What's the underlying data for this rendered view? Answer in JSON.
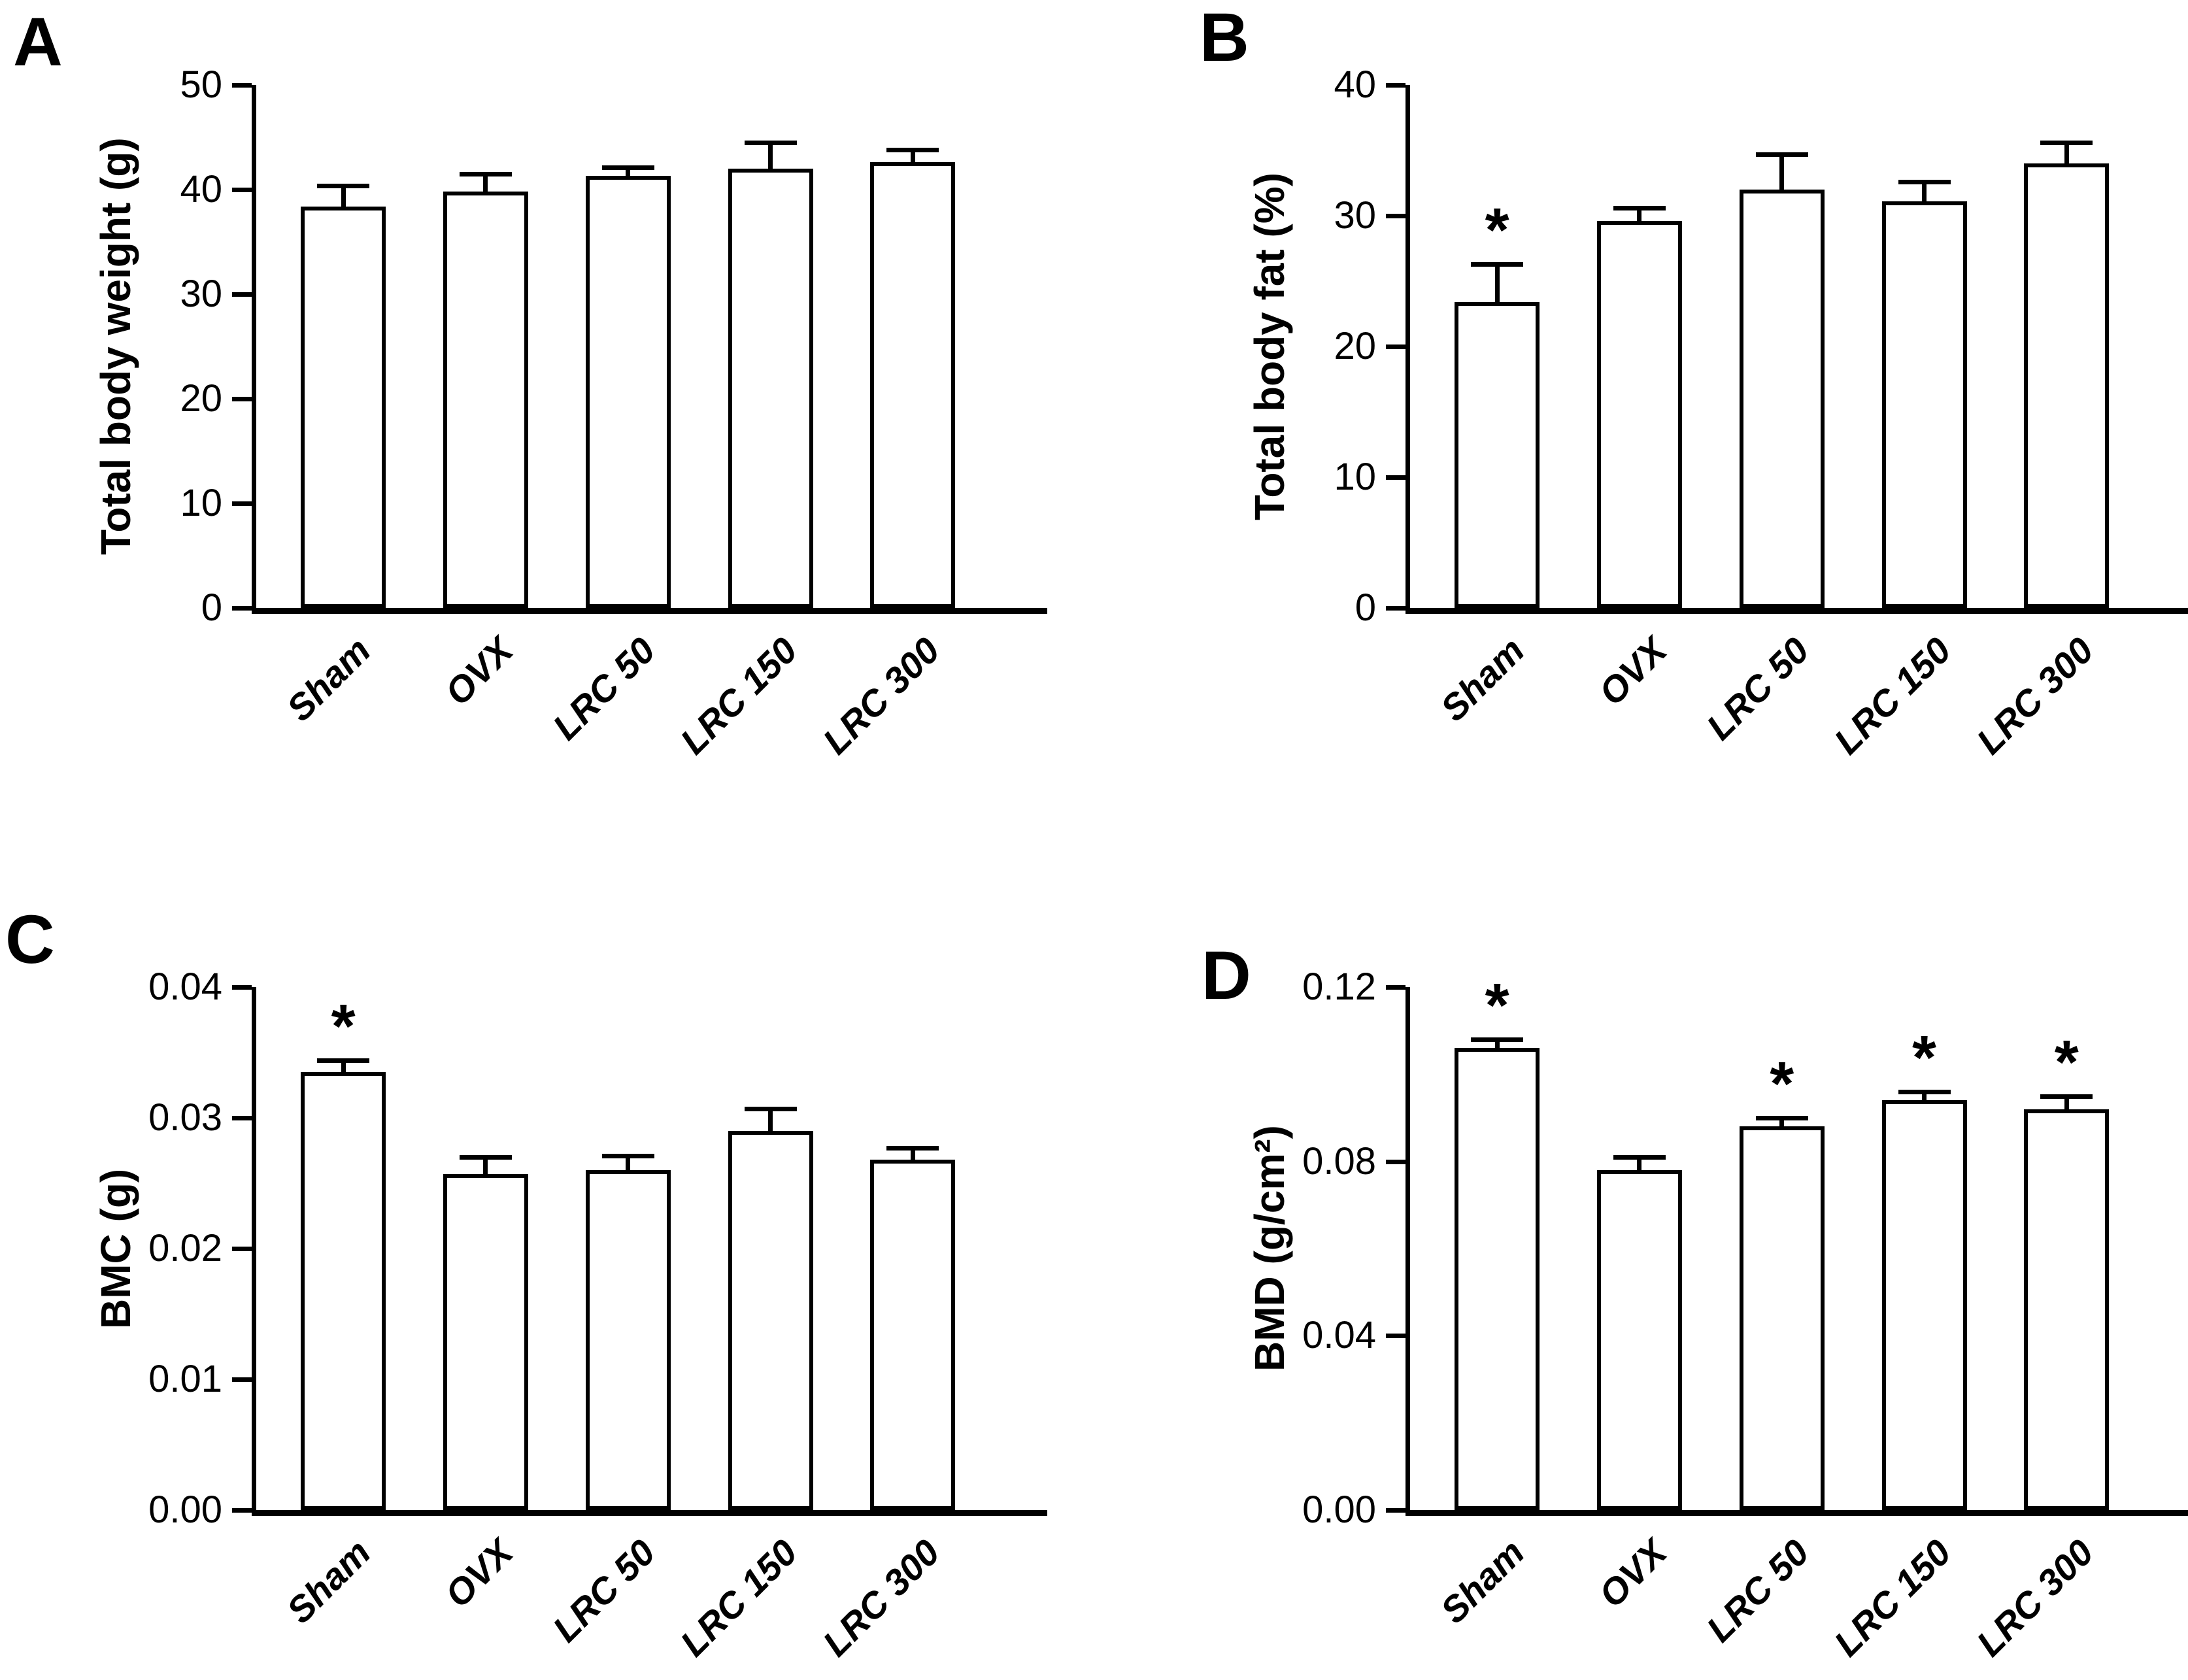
{
  "figure": {
    "background": "#ffffff",
    "bar_fill": "#ffffff",
    "bar_border": "#000000",
    "axis_color": "#000000",
    "significance_marker": "*",
    "panel_letters": [
      "A",
      "B",
      "C",
      "D"
    ]
  },
  "chart_data": [
    {
      "type": "bar",
      "panel_letter": "A",
      "title": "",
      "xlabel": "",
      "ylabel": "Total body weight (g)",
      "categories": [
        "Sham",
        "OVX",
        "LRC 50",
        "LRC 150",
        "LRC 300"
      ],
      "values": [
        38.4,
        39.8,
        41.3,
        42.0,
        42.6
      ],
      "sem": [
        2.0,
        1.7,
        0.8,
        2.5,
        1.2
      ],
      "significant": [
        false,
        false,
        false,
        false,
        false
      ],
      "ylim": [
        0,
        50
      ],
      "yticks": [
        0,
        10,
        20,
        30,
        40,
        50
      ],
      "ytick_labels": [
        "0",
        "10",
        "20",
        "30",
        "40",
        "50"
      ],
      "grid": false,
      "legend": null,
      "error_bar_style": "upper T-cap",
      "x_label_rotation_deg": 45
    },
    {
      "type": "bar",
      "panel_letter": "B",
      "title": "",
      "xlabel": "",
      "ylabel": "Total body fat (%)",
      "categories": [
        "Sham",
        "OVX",
        "LRC 50",
        "LRC 150",
        "LRC 300"
      ],
      "values": [
        23.4,
        29.6,
        32.0,
        31.1,
        34.0
      ],
      "sem": [
        2.9,
        1.0,
        2.7,
        1.5,
        1.6
      ],
      "significant": [
        true,
        false,
        false,
        false,
        false
      ],
      "ylim": [
        0,
        40
      ],
      "yticks": [
        0,
        10,
        20,
        30,
        40
      ],
      "ytick_labels": [
        "0",
        "10",
        "20",
        "30",
        "40"
      ],
      "grid": false,
      "legend": null,
      "error_bar_style": "upper T-cap",
      "x_label_rotation_deg": 45
    },
    {
      "type": "bar",
      "panel_letter": "C",
      "title": "",
      "xlabel": "",
      "ylabel": "BMC (g)",
      "categories": [
        "Sham",
        "OVX",
        "LRC 50",
        "LRC 150",
        "LRC 300"
      ],
      "values": [
        0.0335,
        0.0257,
        0.026,
        0.029,
        0.0268
      ],
      "sem": [
        0.0009,
        0.0013,
        0.0011,
        0.0017,
        0.0009
      ],
      "significant": [
        true,
        false,
        false,
        false,
        false
      ],
      "ylim": [
        0,
        0.04
      ],
      "yticks": [
        0,
        0.01,
        0.02,
        0.03,
        0.04
      ],
      "ytick_labels": [
        "0.00",
        "0.01",
        "0.02",
        "0.03",
        "0.04"
      ],
      "grid": false,
      "legend": null,
      "error_bar_style": "upper T-cap",
      "x_label_rotation_deg": 45
    },
    {
      "type": "bar",
      "panel_letter": "D",
      "title": "",
      "xlabel": "",
      "ylabel": "BMD (g/cm²)",
      "categories": [
        "Sham",
        "OVX",
        "LRC 50",
        "LRC 150",
        "LRC 300"
      ],
      "values": [
        0.106,
        0.078,
        0.088,
        0.094,
        0.092
      ],
      "sem": [
        0.002,
        0.003,
        0.002,
        0.002,
        0.003
      ],
      "significant": [
        true,
        false,
        true,
        true,
        true
      ],
      "ylim": [
        0,
        0.12
      ],
      "yticks": [
        0,
        0.04,
        0.08,
        0.12
      ],
      "ytick_labels": [
        "0.00",
        "0.04",
        "0.08",
        "0.12"
      ],
      "grid": false,
      "legend": null,
      "error_bar_style": "upper T-cap",
      "x_label_rotation_deg": 45
    }
  ]
}
